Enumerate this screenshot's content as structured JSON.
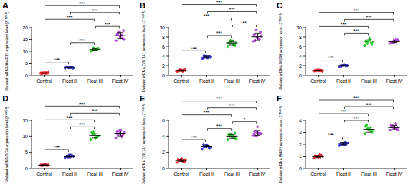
{
  "chart_data": [
    {
      "type": "dot",
      "title": "A",
      "ylabel": [
        "Related mRNA MMP13 expression level (2",
        "−ΔΔCt",
        ")"
      ],
      "categories": [
        "Control",
        "Ficat II",
        "Ficat III",
        "Ficat IV"
      ],
      "colors": [
        "#e8262a",
        "#3b3bd6",
        "#2ecc2e",
        "#b84ddb"
      ],
      "marker": "diamond",
      "values": [
        [
          0.9,
          1.0,
          1.1,
          0.95,
          1.05,
          1.0,
          0.85,
          1.15,
          1.0,
          0.98
        ],
        [
          3.0,
          3.3,
          3.1,
          3.5,
          2.9,
          3.2,
          3.4,
          3.0,
          3.3,
          3.1
        ],
        [
          10.2,
          10.8,
          11.0,
          10.5,
          11.3,
          10.9,
          10.4,
          11.1,
          10.7,
          11.5
        ],
        [
          14.5,
          15.5,
          16.0,
          17.0,
          18.5,
          16.5,
          17.5,
          15.0,
          16.8,
          18.0
        ]
      ],
      "means": [
        1.0,
        3.18,
        10.84,
        16.53
      ],
      "sds": [
        0.09,
        0.19,
        0.39,
        1.27
      ],
      "ylim": [
        0,
        20
      ],
      "yticks": [
        0,
        5,
        10,
        15,
        20
      ],
      "annotations": [
        {
          "from": 0,
          "to": 1,
          "text": "***"
        },
        {
          "from": 1,
          "to": 2,
          "text": "***"
        },
        {
          "from": 2,
          "to": 3,
          "text": "***"
        },
        {
          "from": 0,
          "to": 2,
          "text": "***"
        },
        {
          "from": 1,
          "to": 3,
          "text": "***"
        },
        {
          "from": 0,
          "to": 3,
          "text": "***"
        }
      ]
    },
    {
      "type": "dot",
      "title": "B",
      "ylabel": [
        "Related mRNA COL1A1 expression level (2",
        "−ΔΔCt",
        ")"
      ],
      "categories": [
        "Control",
        "Ficat II",
        "Ficat III",
        "Ficat IV"
      ],
      "colors": [
        "#e8262a",
        "#3b3bd6",
        "#2ecc2e",
        "#b84ddb"
      ],
      "marker": "diamond",
      "values": [
        [
          0.8,
          1.0,
          1.1,
          0.9,
          1.2,
          1.0,
          0.95,
          1.05,
          0.85,
          1.1
        ],
        [
          3.5,
          3.8,
          4.0,
          3.6,
          3.9,
          3.7,
          4.1,
          3.8,
          3.6,
          4.0
        ],
        [
          6.0,
          6.5,
          7.0,
          6.8,
          6.3,
          7.2,
          6.6,
          6.9,
          6.4,
          7.3
        ],
        [
          7.0,
          7.5,
          8.0,
          8.5,
          9.0,
          7.8,
          7.3,
          8.2,
          7.6,
          9.5
        ]
      ],
      "means": [
        0.995,
        3.8,
        6.7,
        8.04
      ],
      "sds": [
        0.12,
        0.19,
        0.41,
        0.76
      ],
      "ylim": [
        0,
        10
      ],
      "yticks": [
        0,
        2,
        4,
        6,
        8,
        10
      ],
      "annotations": [
        {
          "from": 0,
          "to": 1,
          "text": "***"
        },
        {
          "from": 1,
          "to": 2,
          "text": "***"
        },
        {
          "from": 2,
          "to": 3,
          "text": "**"
        },
        {
          "from": 0,
          "to": 2,
          "text": "***"
        },
        {
          "from": 1,
          "to": 3,
          "text": "***"
        },
        {
          "from": 0,
          "to": 3,
          "text": "***"
        }
      ]
    },
    {
      "type": "dot",
      "title": "C",
      "ylabel": [
        "Related mRNA ASPN expression level (2",
        "−ΔΔCt",
        ")"
      ],
      "categories": [
        "Control",
        "Ficat II",
        "Ficat III",
        "Ficat IV"
      ],
      "colors": [
        "#e8262a",
        "#3b3bd6",
        "#2ecc2e",
        "#b84ddb"
      ],
      "marker": "diamond",
      "values": [
        [
          0.9,
          1.0,
          1.1,
          0.95,
          1.05,
          1.0,
          1.1,
          0.9,
          1.0,
          1.0
        ],
        [
          1.8,
          2.0,
          2.1,
          1.9,
          2.0,
          2.2,
          1.9,
          2.0,
          2.1,
          2.0
        ],
        [
          6.2,
          6.8,
          7.2,
          7.0,
          6.5,
          7.8,
          7.1,
          6.9,
          7.4,
          6.6
        ],
        [
          6.6,
          7.0,
          7.3,
          6.8,
          7.5,
          7.1,
          6.9,
          7.2,
          7.4,
          6.7
        ]
      ],
      "means": [
        1.0,
        2.0,
        6.95,
        7.05
      ],
      "sds": [
        0.07,
        0.11,
        0.45,
        0.29
      ],
      "ylim": [
        0,
        10
      ],
      "yticks": [
        0,
        2,
        4,
        6,
        8,
        10
      ],
      "annotations": [
        {
          "from": 0,
          "to": 1,
          "text": "***"
        },
        {
          "from": 1,
          "to": 2,
          "text": "***"
        },
        {
          "from": 0,
          "to": 2,
          "text": "***"
        },
        {
          "from": 1,
          "to": 3,
          "text": "***"
        },
        {
          "from": 0,
          "to": 3,
          "text": "***"
        }
      ]
    },
    {
      "type": "dot",
      "title": "D",
      "ylabel": [
        "Related mRNA OGN expression level (2",
        "−ΔΔCt",
        ")"
      ],
      "categories": [
        "Control",
        "Ficat II",
        "Ficat III",
        "Ficat IV"
      ],
      "colors": [
        "#e8262a",
        "#3b3bd6",
        "#2ecc2e",
        "#b84ddb"
      ],
      "marker": "diamond",
      "values": [
        [
          0.9,
          1.0,
          1.1,
          1.0,
          0.95,
          1.05,
          1.0,
          1.0,
          1.1,
          0.9
        ],
        [
          3.3,
          3.8,
          4.2,
          3.6,
          4.0,
          3.5,
          3.9,
          3.7,
          4.3,
          3.4
        ],
        [
          9.0,
          9.8,
          10.5,
          11.2,
          10.0,
          9.5,
          10.8,
          10.2,
          9.7,
          11.5
        ],
        [
          9.5,
          10.3,
          11.0,
          11.5,
          10.8,
          12.0,
          10.5,
          11.2,
          9.8,
          11.8
        ]
      ],
      "means": [
        1.0,
        3.77,
        10.22,
        10.84
      ],
      "sds": [
        0.07,
        0.32,
        0.75,
        0.8
      ],
      "ylim": [
        0,
        15
      ],
      "yticks": [
        0,
        5,
        10,
        15
      ],
      "annotations": [
        {
          "from": 0,
          "to": 1,
          "text": "***"
        },
        {
          "from": 1,
          "to": 2,
          "text": "***"
        },
        {
          "from": 0,
          "to": 2,
          "text": "***"
        },
        {
          "from": 1,
          "to": 3,
          "text": "***"
        },
        {
          "from": 0,
          "to": 3,
          "text": "***"
        }
      ]
    },
    {
      "type": "dot",
      "title": "E",
      "ylabel": [
        "Related mRNA COL2A1 expression level (2",
        "−ΔΔCt",
        ")"
      ],
      "categories": [
        "Control",
        "Ficat II",
        "Ficat III",
        "Ficat IV"
      ],
      "colors": [
        "#e8262a",
        "#3b3bd6",
        "#2ecc2e",
        "#b84ddb"
      ],
      "marker": "diamond",
      "values": [
        [
          0.7,
          0.9,
          1.0,
          1.1,
          0.8,
          1.2,
          0.95,
          1.05,
          0.85,
          1.0
        ],
        [
          2.4,
          2.6,
          2.8,
          3.0,
          2.5,
          2.9,
          2.7,
          2.6,
          2.8,
          2.7
        ],
        [
          3.6,
          3.8,
          4.0,
          4.2,
          4.4,
          3.9,
          4.1,
          3.7,
          4.0,
          4.3
        ],
        [
          4.1,
          4.3,
          4.5,
          4.2,
          4.4,
          5.2,
          4.6,
          4.3,
          4.4,
          4.0
        ]
      ],
      "means": [
        0.955,
        2.7,
        4.0,
        4.4
      ],
      "sds": [
        0.15,
        0.18,
        0.25,
        0.33
      ],
      "ylim": [
        0,
        6
      ],
      "yticks": [
        0,
        2,
        4,
        6
      ],
      "annotations": [
        {
          "from": 0,
          "to": 1,
          "text": "***"
        },
        {
          "from": 1,
          "to": 2,
          "text": "***"
        },
        {
          "from": 2,
          "to": 3,
          "text": "*"
        },
        {
          "from": 0,
          "to": 2,
          "text": "***"
        },
        {
          "from": 1,
          "to": 3,
          "text": "***"
        },
        {
          "from": 0,
          "to": 3,
          "text": "***"
        }
      ]
    },
    {
      "type": "dot",
      "title": "F",
      "ylabel": [
        "Related mRNA BMP2 expression level (2",
        "−ΔΔCt",
        ")"
      ],
      "categories": [
        "Control",
        "Ficat II",
        "Ficat III",
        "Ficat IV"
      ],
      "colors": [
        "#e8262a",
        "#3b3bd6",
        "#2ecc2e",
        "#b84ddb"
      ],
      "marker": "diamond",
      "values": [
        [
          0.85,
          0.95,
          1.0,
          1.05,
          1.1,
          0.9,
          1.0,
          1.0,
          1.15,
          0.95
        ],
        [
          1.9,
          2.0,
          2.1,
          2.05,
          2.15,
          1.95,
          2.0,
          2.1,
          2.2,
          2.05
        ],
        [
          2.9,
          3.1,
          3.3,
          3.5,
          3.0,
          3.2,
          3.6,
          3.1,
          3.4,
          3.3
        ],
        [
          3.2,
          3.3,
          3.5,
          3.6,
          3.4,
          3.3,
          3.5,
          3.2,
          3.7,
          3.4
        ]
      ],
      "means": [
        0.995,
        2.05,
        3.24,
        3.41
      ],
      "sds": [
        0.09,
        0.09,
        0.22,
        0.16
      ],
      "ylim": [
        0,
        4
      ],
      "yticks": [
        0,
        1,
        2,
        3,
        4
      ],
      "annotations": [
        {
          "from": 0,
          "to": 1,
          "text": "***"
        },
        {
          "from": 1,
          "to": 2,
          "text": "***"
        },
        {
          "from": 0,
          "to": 2,
          "text": "***"
        },
        {
          "from": 1,
          "to": 3,
          "text": "***"
        },
        {
          "from": 0,
          "to": 3,
          "text": "***"
        }
      ]
    }
  ]
}
